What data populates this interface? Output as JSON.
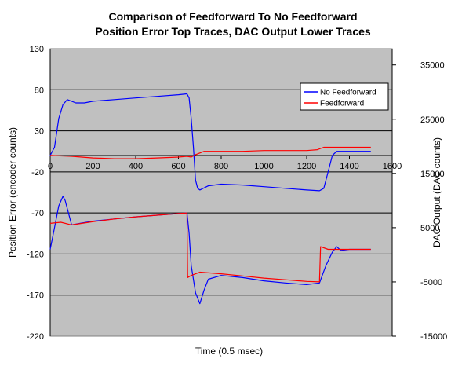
{
  "chart_data": {
    "type": "line",
    "title_lines": [
      "Comparison of Feedforward To No Feedforward",
      "Position Error Top Traces, DAC Output Lower Traces"
    ],
    "xlabel": "Time (0.5 msec)",
    "ylabel_left": "Position Error (encoder counts)",
    "ylabel_right": "DAC Output  (DAC counts)",
    "x_ticks": [
      0,
      200,
      400,
      600,
      800,
      1000,
      1200,
      1400,
      1600
    ],
    "x_axis_position": "inside plot at position error 0",
    "y_left_range": [
      -220,
      130
    ],
    "y_left_ticks": [
      130,
      80,
      30,
      -20,
      -70,
      -120,
      -170,
      -220
    ],
    "y_right_range": [
      -15000,
      38000
    ],
    "y_right_ticks": [
      35000,
      25000,
      15000,
      5000,
      -5000,
      -15000
    ],
    "grid": true,
    "plot_background": "#c0c0c0",
    "legend_position": "top-right inside plot",
    "series": [
      {
        "name": "No Feedforward",
        "color": "#0000ff",
        "role": "position_error",
        "axis": "left",
        "points": [
          [
            0,
            0
          ],
          [
            20,
            10
          ],
          [
            40,
            45
          ],
          [
            60,
            62
          ],
          [
            80,
            68
          ],
          [
            120,
            64
          ],
          [
            160,
            64
          ],
          [
            200,
            66
          ],
          [
            300,
            68
          ],
          [
            400,
            70
          ],
          [
            500,
            72
          ],
          [
            600,
            74
          ],
          [
            640,
            75
          ],
          [
            650,
            70
          ],
          [
            660,
            45
          ],
          [
            670,
            10
          ],
          [
            680,
            -30
          ],
          [
            690,
            -40
          ],
          [
            700,
            -42
          ],
          [
            740,
            -37
          ],
          [
            800,
            -35
          ],
          [
            900,
            -36
          ],
          [
            1000,
            -38
          ],
          [
            1100,
            -40
          ],
          [
            1200,
            -42
          ],
          [
            1260,
            -43
          ],
          [
            1280,
            -40
          ],
          [
            1300,
            -20
          ],
          [
            1320,
            0
          ],
          [
            1340,
            5
          ],
          [
            1500,
            5
          ]
        ]
      },
      {
        "name": "Feedforward",
        "color": "#ff0000",
        "role": "position_error",
        "axis": "left",
        "points": [
          [
            0,
            0
          ],
          [
            100,
            -1
          ],
          [
            200,
            -3
          ],
          [
            300,
            -4
          ],
          [
            400,
            -4
          ],
          [
            500,
            -3
          ],
          [
            600,
            -2
          ],
          [
            640,
            -1
          ],
          [
            660,
            -2
          ],
          [
            680,
            1
          ],
          [
            700,
            3
          ],
          [
            720,
            5
          ],
          [
            800,
            5
          ],
          [
            900,
            5
          ],
          [
            1000,
            6
          ],
          [
            1100,
            6
          ],
          [
            1200,
            6
          ],
          [
            1250,
            7
          ],
          [
            1280,
            10
          ],
          [
            1500,
            10
          ]
        ]
      },
      {
        "name": "No Feedforward",
        "color": "#0000ff",
        "role": "dac_output",
        "axis": "right",
        "points": [
          [
            0,
            1000
          ],
          [
            20,
            5000
          ],
          [
            40,
            9000
          ],
          [
            60,
            10800
          ],
          [
            70,
            10000
          ],
          [
            100,
            5500
          ],
          [
            140,
            5800
          ],
          [
            200,
            6200
          ],
          [
            300,
            6600
          ],
          [
            400,
            7000
          ],
          [
            500,
            7300
          ],
          [
            600,
            7600
          ],
          [
            640,
            7700
          ],
          [
            650,
            4000
          ],
          [
            660,
            -2000
          ],
          [
            680,
            -7000
          ],
          [
            700,
            -9000
          ],
          [
            720,
            -6500
          ],
          [
            740,
            -4500
          ],
          [
            800,
            -3800
          ],
          [
            900,
            -4200
          ],
          [
            1000,
            -4800
          ],
          [
            1100,
            -5200
          ],
          [
            1200,
            -5500
          ],
          [
            1260,
            -5200
          ],
          [
            1290,
            -2000
          ],
          [
            1320,
            500
          ],
          [
            1340,
            1500
          ],
          [
            1360,
            800
          ],
          [
            1400,
            1000
          ],
          [
            1500,
            1000
          ]
        ]
      },
      {
        "name": "Feedforward",
        "color": "#ff0000",
        "role": "dac_output",
        "axis": "right",
        "points": [
          [
            0,
            5800
          ],
          [
            50,
            6000
          ],
          [
            100,
            5500
          ],
          [
            200,
            6100
          ],
          [
            300,
            6600
          ],
          [
            400,
            7000
          ],
          [
            500,
            7300
          ],
          [
            600,
            7600
          ],
          [
            640,
            7700
          ],
          [
            643,
            -4200
          ],
          [
            660,
            -3800
          ],
          [
            700,
            -3200
          ],
          [
            800,
            -3500
          ],
          [
            900,
            -3900
          ],
          [
            1000,
            -4300
          ],
          [
            1100,
            -4600
          ],
          [
            1200,
            -4900
          ],
          [
            1260,
            -5000
          ],
          [
            1265,
            1500
          ],
          [
            1300,
            1000
          ],
          [
            1500,
            1000
          ]
        ]
      }
    ]
  }
}
